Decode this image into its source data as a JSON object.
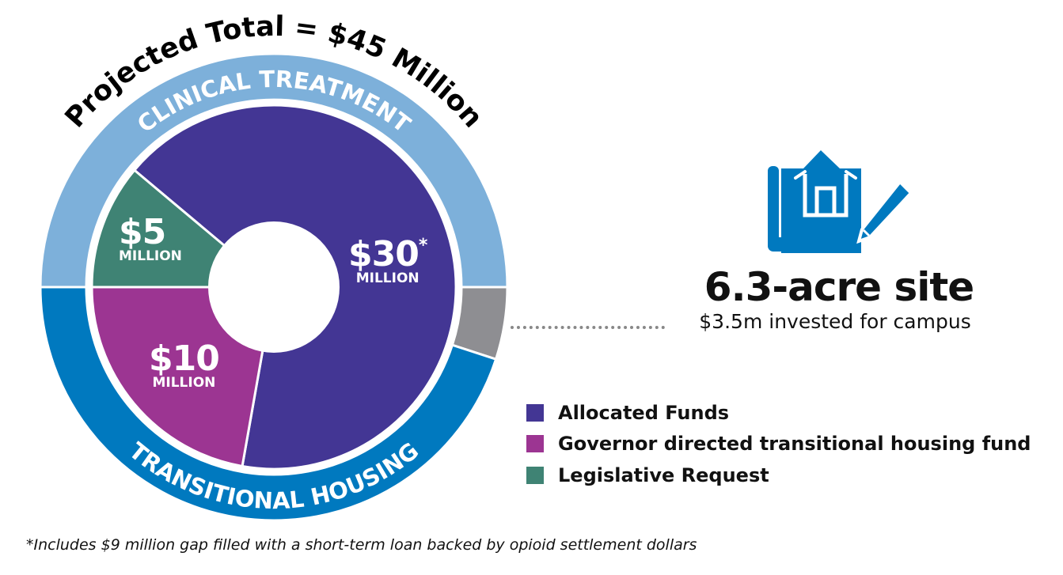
{
  "chart_data": {
    "type": "pie",
    "title": "Projected Total = $45 Million",
    "inner": {
      "categories": [
        "Allocated Funds",
        "Governor directed transitional housing fund",
        "Legislative Request"
      ],
      "values": [
        30,
        10,
        5
      ],
      "unit": "MILLION",
      "labels": [
        "$30",
        "$10",
        "$5"
      ],
      "footnote_marker": "*",
      "colors": [
        "#433694",
        "#9c3592",
        "#3f8374"
      ]
    },
    "outer_ring": {
      "segments": [
        {
          "label": "CLINICAL TREATMENT",
          "color": "#7db0da"
        },
        {
          "label": "",
          "color": "#8e8e92"
        },
        {
          "label": "TRANSITIONAL HOUSING",
          "color": "#0079bf"
        }
      ]
    },
    "legend": {
      "placement": "bottom-right",
      "items": [
        {
          "label": "Allocated Funds",
          "color": "#433694"
        },
        {
          "label": "Governor directed transitional housing fund",
          "color": "#9c3592"
        },
        {
          "label": "Legislative Request",
          "color": "#3f8374"
        }
      ]
    }
  },
  "site": {
    "icon": "blueprint-house-pencil-icon",
    "title": "6.3-acre site",
    "subtitle": "$3.5m invested for campus",
    "color": "#0079bf"
  },
  "footnote": "*Includes $9 million gap filled with a short-term loan backed by opioid settlement dollars"
}
